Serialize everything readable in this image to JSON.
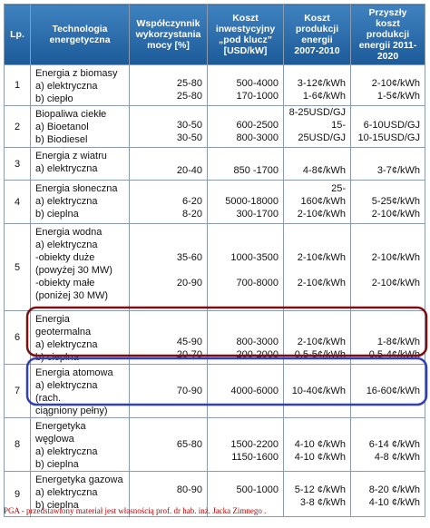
{
  "table": {
    "header": [
      "Lp.",
      "Technologia energetyczna",
      "Współczynnik wykorzystania mocy [%]",
      "Koszt inwestycyjny „pod klucz” [USD/kW]",
      "Koszt produkcji energii 2007-2010",
      "Przyszły koszt produkcji energii 2011-2020"
    ],
    "rows": [
      {
        "lp": "1",
        "tech": [
          "Energia z biomasy",
          "a) elektryczna",
          "b) ciepło"
        ],
        "factor": [
          "25-80",
          "25-80"
        ],
        "cost": [
          "500-4000",
          "170-1000"
        ],
        "prod": [
          "3-12¢/kWh",
          "1-6¢/kWh"
        ],
        "future": [
          "2-10¢/kWh",
          "1-5¢/kWh"
        ]
      },
      {
        "lp": "2",
        "tech": [
          "Biopaliwa ciekłe",
          "a) Bioetanol",
          "b) Biodiesel"
        ],
        "factor": [
          "30-50",
          "30-50"
        ],
        "cost": [
          "600-2500",
          "800-3000"
        ],
        "prod": [
          "8-25USD/GJ",
          "15-25USD/GJ"
        ],
        "future": [
          "6-10USD/GJ",
          "10-15USD/GJ"
        ]
      },
      {
        "lp": "3",
        "tech": [
          "Energia z wiatru",
          "a) elektryczna"
        ],
        "factor": [
          "20-40"
        ],
        "cost": [
          "850 -1700"
        ],
        "prod": [
          "4-8¢/kWh"
        ],
        "future": [
          "3-7¢/kWh"
        ]
      },
      {
        "lp": "4",
        "tech": [
          "Energia słoneczna",
          "a) elektryczna",
          "b) cieplna"
        ],
        "factor": [
          "6-20",
          "8-20"
        ],
        "cost": [
          "5000-18000",
          "300-1700"
        ],
        "prod": [
          "25-160¢/kWh",
          "2-10¢/kWh"
        ],
        "future": [
          "5-25¢/kWh",
          "2-10¢/kWh"
        ]
      },
      {
        "lp": "5",
        "tech": [
          "Energia wodna",
          "a) elektryczna",
          "-obiekty duże",
          "(powyżej 30 MW)",
          "-obiekty małe",
          "(poniżej 30 MW)"
        ],
        "factor": [
          "35-60",
          "20-90"
        ],
        "cost": [
          "1000-3500",
          "700-8000"
        ],
        "prod": [
          "2-10¢/kWh",
          "2-10¢/kWh"
        ],
        "future": [
          "2-10¢/kWh",
          "2-10¢/kWh"
        ]
      },
      {
        "lp": "6",
        "tech": [
          "Energia geotermalna",
          "a) elektryczna",
          "b) cieplna"
        ],
        "factor": [
          "45-90",
          "20-70"
        ],
        "cost": [
          "800-3000",
          "200-2000"
        ],
        "prod": [
          "2-10¢/kWh",
          "0,5-5¢/kWh"
        ],
        "future": [
          "1-8¢/kWh",
          "0,5-4¢/kWh"
        ]
      },
      {
        "lp": "7",
        "tech": [
          "Energia atomowa",
          "a) elektryczna (rach.",
          "ciągniony pełny)"
        ],
        "factor": [
          "70-90"
        ],
        "cost": [
          "4000-6000"
        ],
        "prod": [
          "10-40¢/kWh"
        ],
        "future": [
          "16-60¢/kWh"
        ]
      },
      {
        "lp": "8",
        "tech": [
          "Energetyka węglowa",
          "a) elektryczna",
          "b) cieplna"
        ],
        "factor": [
          "65-80"
        ],
        "cost": [
          "1500-2200",
          "1150-1600"
        ],
        "prod": [
          "4-10 ¢/kWh",
          "4-10 ¢/kWh"
        ],
        "future": [
          "6-14 ¢/kWh",
          "4-8 ¢/kWh"
        ]
      },
      {
        "lp": "9",
        "tech": [
          "Energetyka gazowa",
          "a) elektryczna",
          "b) cieplna"
        ],
        "factor": [
          "80-90"
        ],
        "cost": [
          "500-1000"
        ],
        "prod": [
          "5-12 ¢/kWh",
          "3-8 ¢/kWh"
        ],
        "future": [
          "8-20 ¢/kWh",
          "4-10 ¢/kWh"
        ]
      }
    ]
  },
  "footer": "PGA - przedstawiony materiał jest własnością prof. dr hab. inż. Jacka Zimnego ."
}
